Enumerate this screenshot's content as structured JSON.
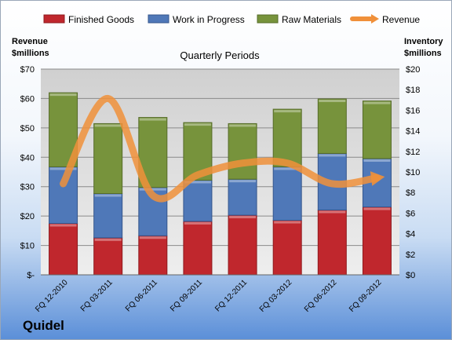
{
  "company": "Quidel",
  "chart_data": {
    "type": "bar",
    "stacked": true,
    "subtitle": "Quarterly Periods",
    "ylabel_left": "Revenue $millions",
    "ylabel_right": "Inventory $millions",
    "ylim_left": [
      0,
      70
    ],
    "ylim_right": [
      0,
      20
    ],
    "yticks_left": [
      "$-",
      "$10",
      "$20",
      "$30",
      "$40",
      "$50",
      "$60",
      "$70"
    ],
    "yticks_right": [
      "$0",
      "$2",
      "$4",
      "$6",
      "$8",
      "$10",
      "$12",
      "$14",
      "$16",
      "$18",
      "$20"
    ],
    "categories": [
      "FQ 12-2010",
      "FQ 03-2011",
      "FQ 06-2011",
      "FQ 09-2011",
      "FQ 12-2011",
      "FQ 03-2012",
      "FQ 06-2012",
      "FQ 09-2012"
    ],
    "series": [
      {
        "name": "Finished Goods",
        "axis": "right",
        "color": "#c0272d",
        "values": [
          5.0,
          3.6,
          3.8,
          5.2,
          5.8,
          5.3,
          6.3,
          6.6
        ]
      },
      {
        "name": "Work in Progress",
        "axis": "right",
        "color": "#4f78b8",
        "values": [
          5.5,
          4.3,
          4.7,
          4.0,
          3.5,
          5.2,
          5.5,
          4.7
        ]
      },
      {
        "name": "Raw Materials",
        "axis": "right",
        "color": "#77933c",
        "values": [
          7.2,
          6.8,
          6.8,
          5.6,
          5.4,
          5.6,
          5.3,
          5.6
        ]
      },
      {
        "name": "Revenue",
        "axis": "left",
        "type": "line",
        "color": "#f0903a",
        "values": [
          31,
          60,
          27,
          34,
          38,
          38,
          31,
          33
        ]
      }
    ],
    "legend": "top",
    "grid": true
  }
}
